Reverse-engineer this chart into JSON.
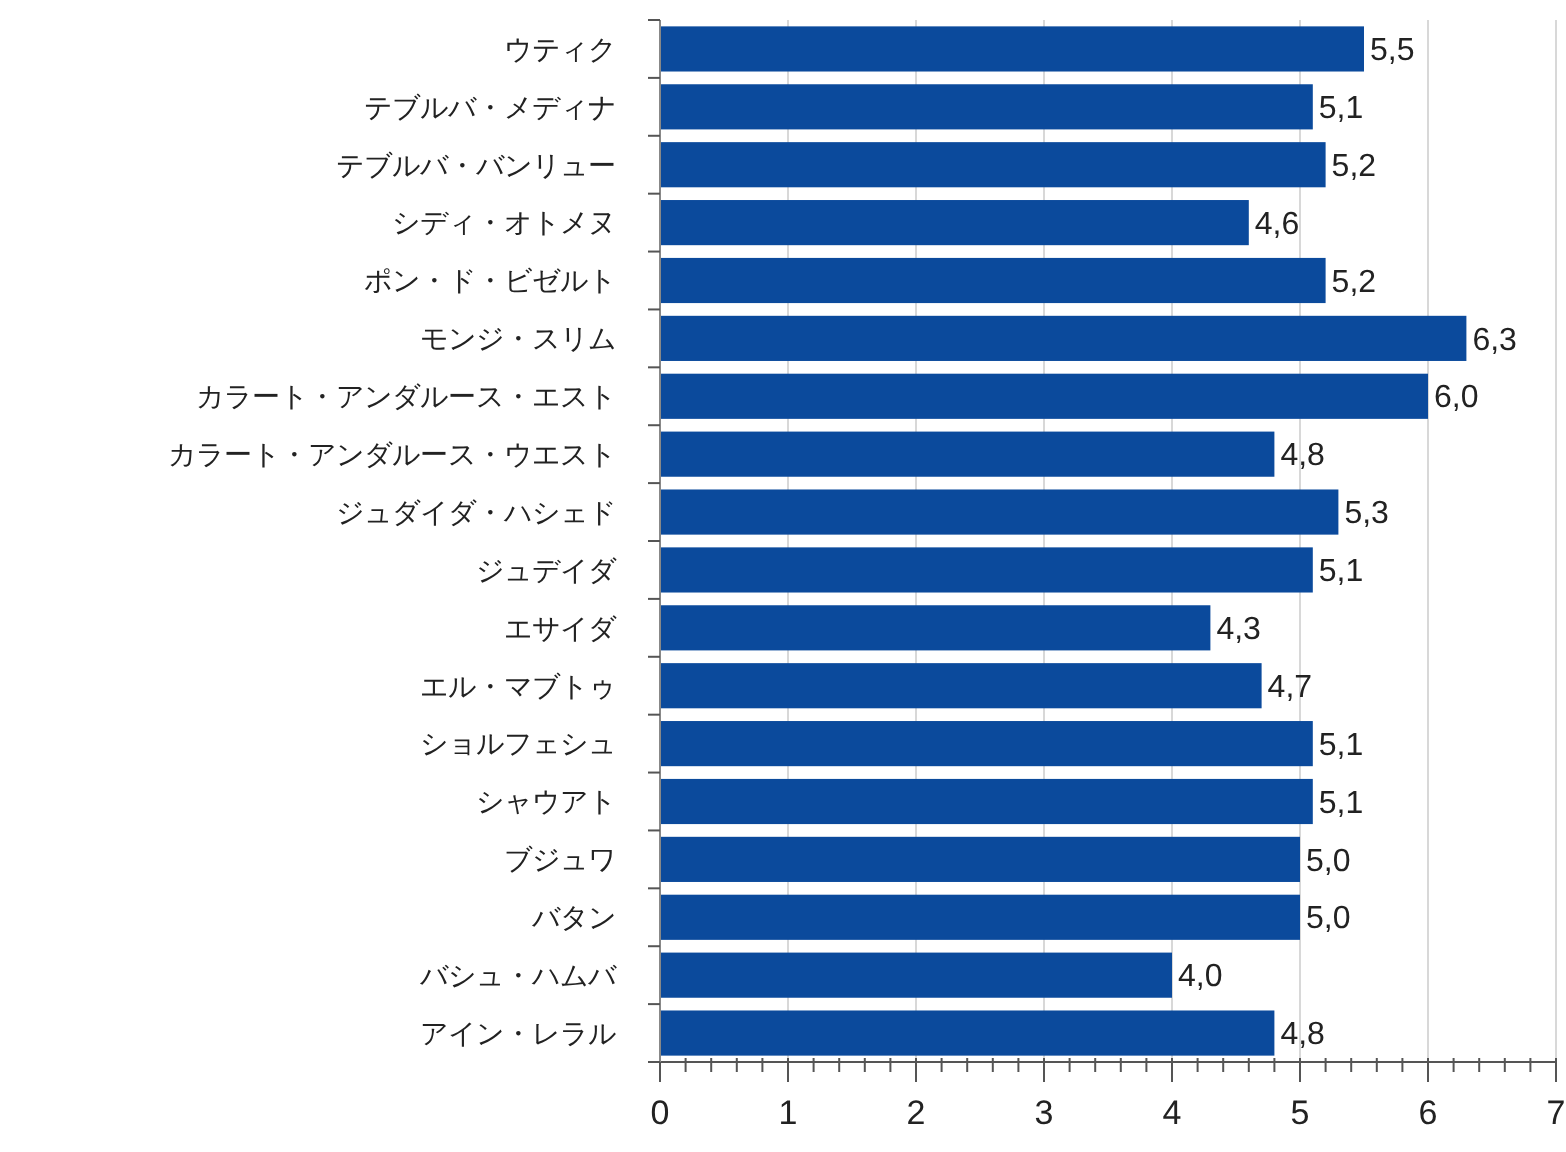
{
  "chart_data": {
    "type": "bar",
    "orientation": "horizontal",
    "categories": [
      "ウティク",
      "テブルバ・メディナ",
      "テブルバ・バンリュー",
      "シディ・オトメヌ",
      "ポン・ド・ビゼルト",
      "モンジ・スリム",
      "カラート・アンダルース・エスト",
      "カラート・アンダルース・ウエスト",
      "ジュダイダ・ハシェド",
      "ジュデイダ",
      "エサイダ",
      "エル・マブトゥ",
      "ショルフェシュ",
      "シャウアト",
      "ブジュワ",
      "バタン",
      "バシュ・ハムバ",
      "アイン・レラル"
    ],
    "values": [
      5.5,
      5.1,
      5.2,
      4.6,
      5.2,
      6.3,
      6.0,
      4.8,
      5.3,
      5.1,
      4.3,
      4.7,
      5.1,
      5.1,
      5.0,
      5.0,
      4.0,
      4.8
    ],
    "value_labels": [
      "5,5",
      "5,1",
      "5,2",
      "4,6",
      "5,2",
      "6,3",
      "6,0",
      "4,8",
      "5,3",
      "5,1",
      "4,3",
      "4,7",
      "5,1",
      "5,1",
      "5,0",
      "5,0",
      "4,0",
      "4,8"
    ],
    "color": "#0b4a9c",
    "xlim": [
      0,
      7
    ],
    "xticks": [
      0,
      {
        "value": 0.2,
        "label": null
      },
      {
        "value": 0.4,
        "label": null
      },
      {
        "value": 0.6,
        "label": null
      },
      {
        "value": 0.8,
        "label": null
      },
      1,
      {
        "value": 1.2,
        "label": null
      },
      {
        "value": 1.4,
        "label": null
      },
      {
        "value": 1.6,
        "label": null
      },
      {
        "value": 1.8,
        "label": null
      },
      2,
      {
        "value": 2.2,
        "label": null
      },
      {
        "value": 2.4,
        "label": null
      },
      {
        "value": 2.6,
        "label": null
      },
      {
        "value": 2.8,
        "label": null
      },
      3,
      {
        "value": 3.2,
        "label": null
      },
      {
        "value": 3.4,
        "label": null
      },
      {
        "value": 3.6,
        "label": null
      },
      {
        "value": 3.8,
        "label": null
      },
      4,
      {
        "value": 4.2,
        "label": null
      },
      {
        "value": 4.4,
        "label": null
      },
      {
        "value": 4.6,
        "label": null
      },
      {
        "value": 4.8,
        "label": null
      },
      5,
      {
        "value": 5.2,
        "label": null
      },
      {
        "value": 5.4,
        "label": null
      },
      {
        "value": 5.6,
        "label": null
      },
      {
        "value": 5.8,
        "label": null
      },
      6,
      {
        "value": 6.2,
        "label": null
      },
      {
        "value": 6.4,
        "label": null
      },
      {
        "value": 6.6,
        "label": null
      },
      {
        "value": 6.8,
        "label": null
      },
      7
    ],
    "grid": "x"
  }
}
